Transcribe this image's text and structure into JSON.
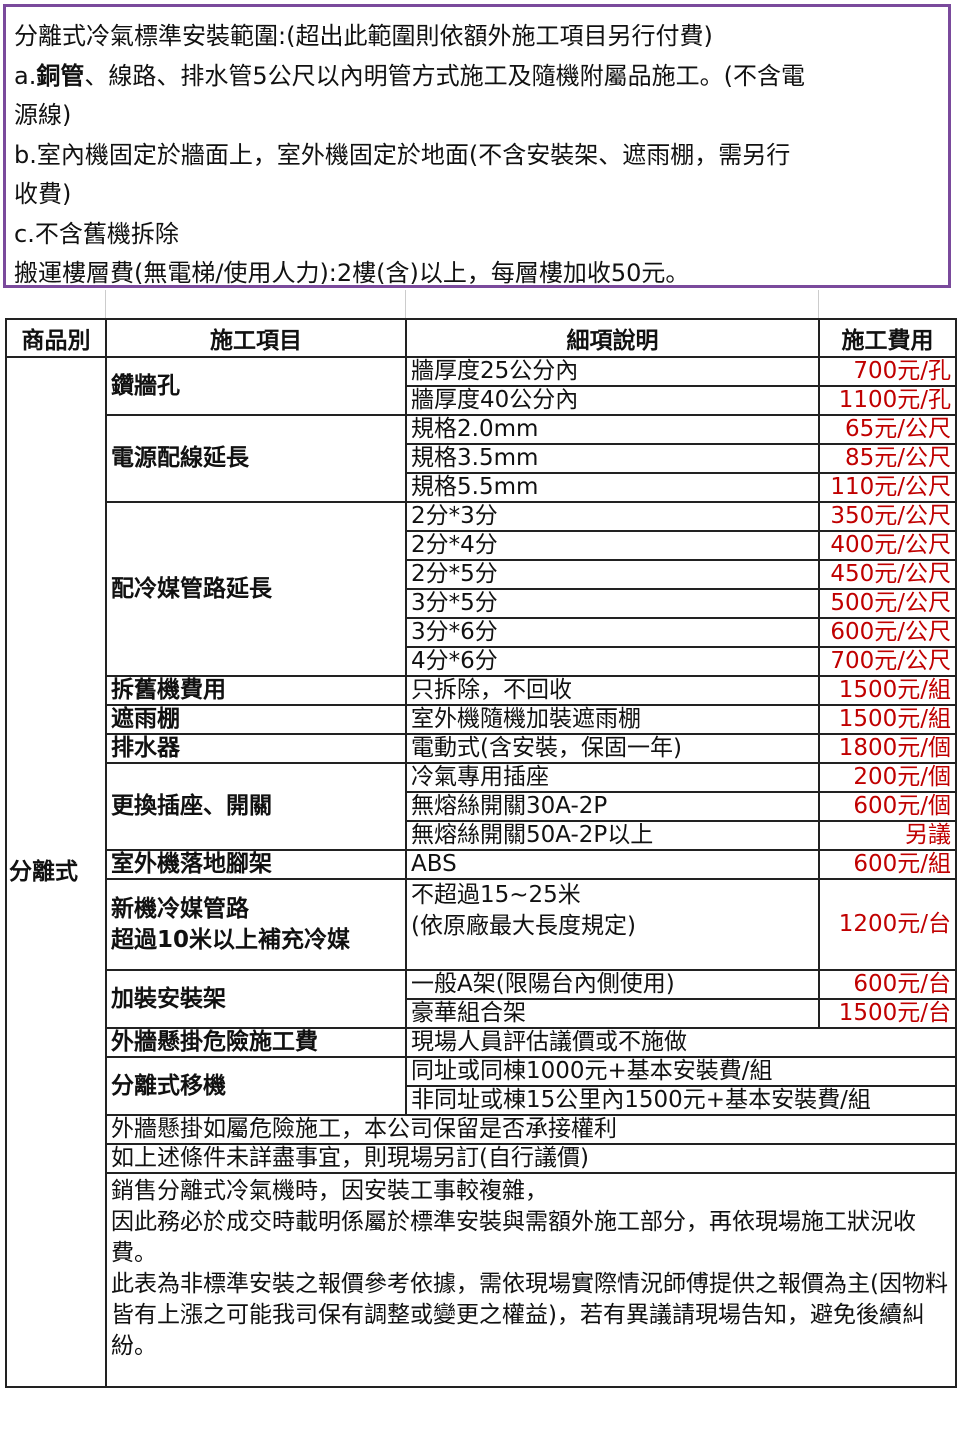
{
  "scope": {
    "title": "分離式冷氣標準安裝範圍:(超出此範圍則依額外施工項目另行付費)",
    "line_a_prefix": "a.",
    "line_a_bold": "銅管",
    "line_a_rest": "、線路、排水管5公尺以內明管方式施工及隨機附屬品施工。(不含電",
    "line_a_cont": "源線)",
    "line_b": "b.室內機固定於牆面上，室外機固定於地面(不含安裝架、遮雨棚，需另行",
    "line_b_cont": "收費)",
    "line_c": "c.不含舊機拆除",
    "line_d": "搬運樓層費(無電梯/使用人力):2樓(含)以上，每層樓加收50元。"
  },
  "table": {
    "headers": [
      "商品別",
      "施工項目",
      "細項說明",
      "施工費用"
    ],
    "category": "分離式",
    "rows": {
      "hole": {
        "item": "鑽牆孔",
        "details": [
          [
            "牆厚度25公分內",
            "700元/孔"
          ],
          [
            "牆厚度40公分內",
            "1100元/孔"
          ]
        ]
      },
      "power": {
        "item": "電源配線延長",
        "details": [
          [
            "規格2.0mm",
            "65元/公尺"
          ],
          [
            "規格3.5mm",
            "85元/公尺"
          ],
          [
            "規格5.5mm",
            "110元/公尺"
          ]
        ]
      },
      "pipe": {
        "item": "配冷媒管路延長",
        "details": [
          [
            "2分*3分",
            "350元/公尺"
          ],
          [
            "2分*4分",
            "400元/公尺"
          ],
          [
            "2分*5分",
            "450元/公尺"
          ],
          [
            "3分*5分",
            "500元/公尺"
          ],
          [
            "3分*6分",
            "600元/公尺"
          ],
          [
            "4分*6分",
            "700元/公尺"
          ]
        ]
      },
      "remove": {
        "item": "拆舊機費用",
        "detail": "只拆除，不回收",
        "price": "1500元/組"
      },
      "rain": {
        "item": "遮雨棚",
        "detail": "室外機隨機加裝遮雨棚",
        "price": "1500元/組"
      },
      "drain": {
        "item": "排水器",
        "detail": "電動式(含安裝，保固一年)",
        "price": "1800元/個"
      },
      "socket": {
        "item": "更換插座、開關",
        "details": [
          [
            "冷氣專用插座",
            "200元/個"
          ],
          [
            "無熔絲開關30A-2P",
            "600元/個"
          ],
          [
            "無熔絲開關50A-2P以上",
            "另議"
          ]
        ]
      },
      "stand": {
        "item": "室外機落地腳架",
        "detail": "ABS",
        "price": "600元/組"
      },
      "refill": {
        "item_line1": "新機冷媒管路",
        "item_line2": "超過10米以上補充冷媒",
        "detail_line1": "不超過15~25米",
        "detail_line2": "(依原廠最大長度規定)",
        "price": "1200元/台"
      },
      "bracket": {
        "item": "加裝安裝架",
        "details": [
          [
            "一般A架(限陽台內側使用)",
            "600元/台"
          ],
          [
            "豪華組合架",
            "1500元/台"
          ]
        ]
      },
      "danger": {
        "item": "外牆懸掛危險施工費",
        "detail": "現場人員評估議價或不施做"
      },
      "move": {
        "item": "分離式移機",
        "details": [
          "同址或同棟1000元+基本安裝費/組",
          "非同址或棟15公里內1500元+基本安裝費/組"
        ]
      }
    },
    "notes": [
      "外牆懸掛如屬危險施工，本公司保留是否承接權利",
      "如上述條件未詳盡事宜，則現場另訂(自行議價)"
    ],
    "final_note": [
      "銷售分離式冷氣機時，因安裝工事較複雜，",
      "因此務必於成交時載明係屬於標準安裝與需額外施工部分，再依現場施工狀況收費。",
      "此表為非標準安裝之報價參考依據，需依現場實際情況師傅提供之報價為主(因物料皆有上漲之可能我司保有調整或變更之權益)，若有異議請現場告知，避免後續糾紛。"
    ]
  },
  "colors": {
    "price": "#c00000",
    "scope_border": "#7a4a9c"
  }
}
